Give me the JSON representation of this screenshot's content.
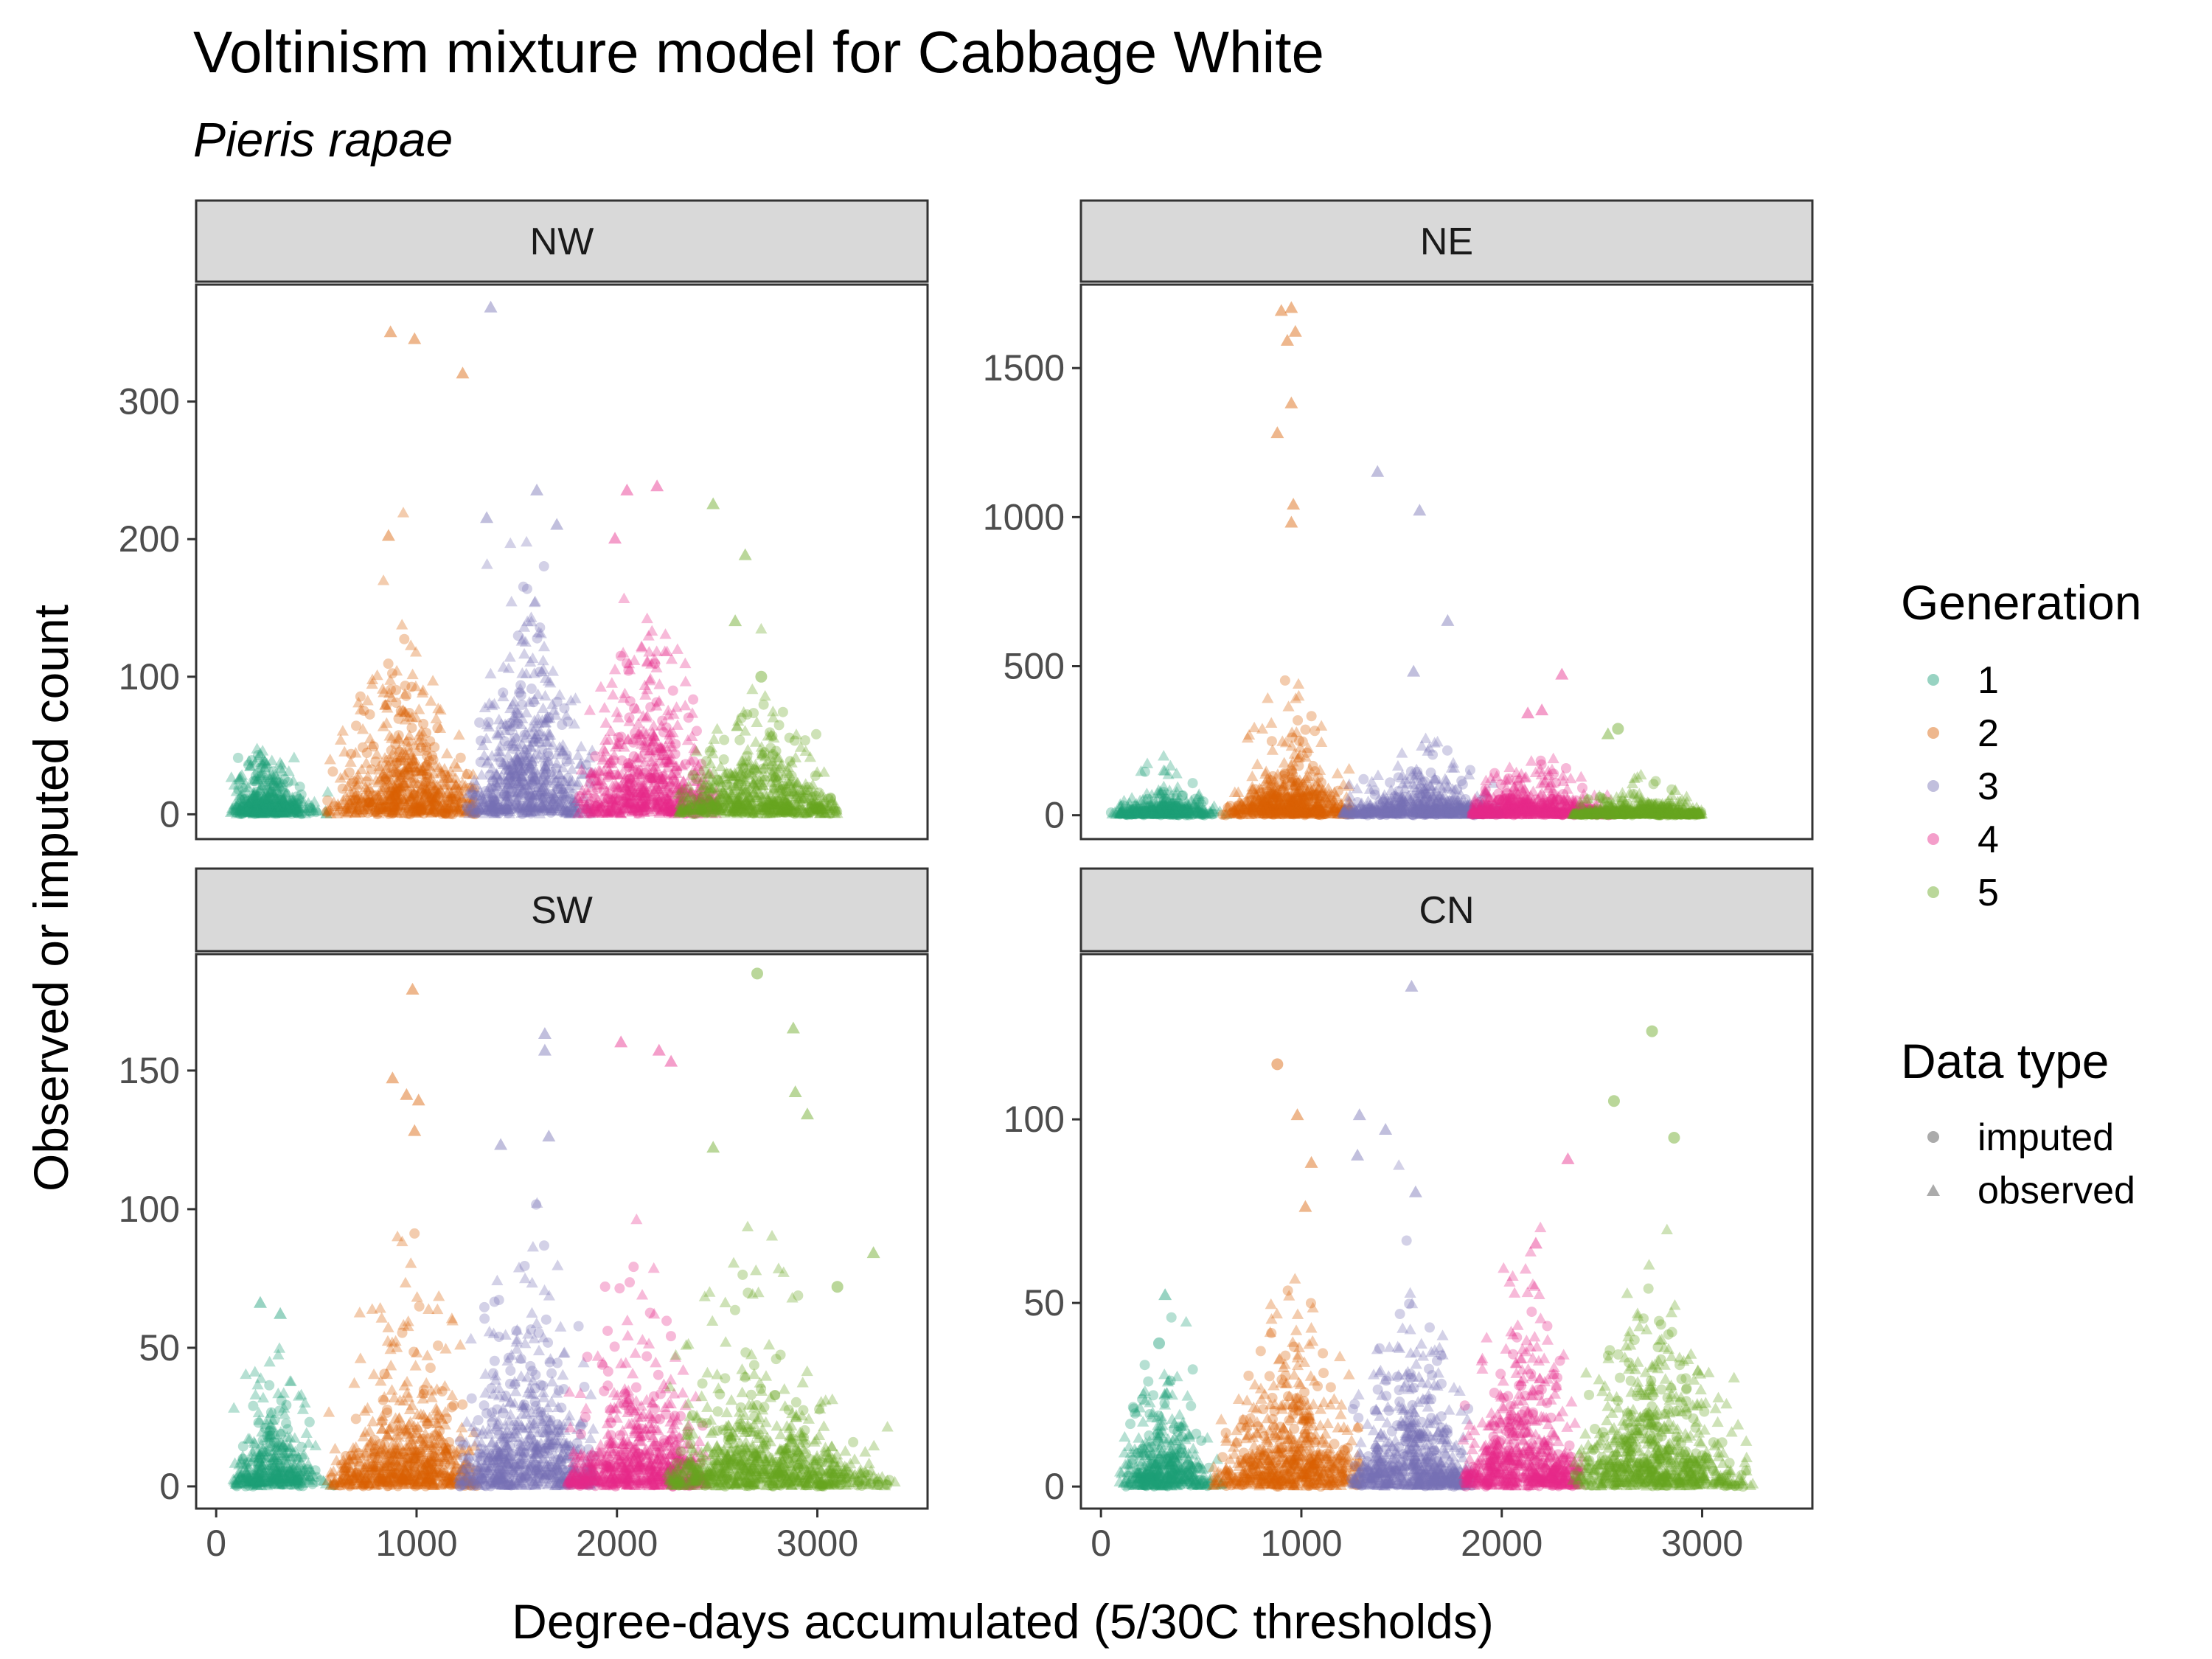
{
  "chart_data": {
    "type": "scatter",
    "title": "Voltinism mixture model for Cabbage White",
    "subtitle": "Pieris rapae",
    "xlabel": "Degree-days accumulated (5/30C thresholds)",
    "ylabel": "Observed or imputed count",
    "x_ticks": [
      0,
      1000,
      2000,
      3000
    ],
    "xlim": [
      -100,
      3550
    ],
    "grid": false,
    "legend_position": "right",
    "legend_generation": {
      "title": "Generation",
      "entries": [
        {
          "label": "1",
          "color": "#1B9E77"
        },
        {
          "label": "2",
          "color": "#D95F02"
        },
        {
          "label": "3",
          "color": "#7570B3"
        },
        {
          "label": "4",
          "color": "#E7298A"
        },
        {
          "label": "5",
          "color": "#66A61E"
        }
      ]
    },
    "legend_datatype": {
      "title": "Data type",
      "entries": [
        {
          "label": "imputed",
          "shape": "circle"
        },
        {
          "label": "observed",
          "shape": "triangle"
        }
      ]
    },
    "panels": [
      {
        "name": "NW",
        "ylim": [
          -18,
          385
        ],
        "y_ticks": [
          0,
          100,
          200,
          300
        ],
        "generations": [
          {
            "gen": "1",
            "center": 250,
            "spread": 110,
            "xmin": 70,
            "xmax": 560,
            "typical": 12,
            "peak": 40,
            "n": 420
          },
          {
            "gen": "2",
            "center": 950,
            "spread": 190,
            "xmin": 550,
            "xmax": 1300,
            "typical": 30,
            "peak": 110,
            "n": 620
          },
          {
            "gen": "3",
            "center": 1550,
            "spread": 170,
            "xmin": 1250,
            "xmax": 1880,
            "typical": 40,
            "peak": 120,
            "n": 620
          },
          {
            "gen": "4",
            "center": 2150,
            "spread": 190,
            "xmin": 1800,
            "xmax": 2500,
            "typical": 35,
            "peak": 130,
            "n": 620
          },
          {
            "gen": "5",
            "center": 2700,
            "spread": 240,
            "xmin": 2300,
            "xmax": 3100,
            "typical": 20,
            "peak": 65,
            "n": 620
          }
        ],
        "highlights": [
          {
            "gen": "2",
            "x": 870,
            "y": 350,
            "shape": "triangle"
          },
          {
            "gen": "2",
            "x": 990,
            "y": 345,
            "shape": "triangle"
          },
          {
            "gen": "2",
            "x": 1230,
            "y": 320,
            "shape": "triangle"
          },
          {
            "gen": "2",
            "x": 860,
            "y": 202,
            "shape": "triangle"
          },
          {
            "gen": "3",
            "x": 1370,
            "y": 368,
            "shape": "triangle"
          },
          {
            "gen": "3",
            "x": 1350,
            "y": 215,
            "shape": "triangle"
          },
          {
            "gen": "3",
            "x": 1600,
            "y": 235,
            "shape": "triangle"
          },
          {
            "gen": "3",
            "x": 1700,
            "y": 210,
            "shape": "triangle"
          },
          {
            "gen": "4",
            "x": 2050,
            "y": 235,
            "shape": "triangle"
          },
          {
            "gen": "4",
            "x": 2200,
            "y": 238,
            "shape": "triangle"
          },
          {
            "gen": "4",
            "x": 1990,
            "y": 200,
            "shape": "triangle"
          },
          {
            "gen": "5",
            "x": 2480,
            "y": 225,
            "shape": "triangle"
          },
          {
            "gen": "5",
            "x": 2640,
            "y": 188,
            "shape": "triangle"
          },
          {
            "gen": "5",
            "x": 2590,
            "y": 140,
            "shape": "triangle"
          },
          {
            "gen": "5",
            "x": 2720,
            "y": 100,
            "shape": "circle"
          }
        ]
      },
      {
        "name": "NE",
        "ylim": [
          -80,
          1780
        ],
        "y_ticks": [
          0,
          500,
          1000,
          1500
        ],
        "generations": [
          {
            "gen": "1",
            "center": 300,
            "spread": 130,
            "xmin": 50,
            "xmax": 640,
            "typical": 25,
            "peak": 180,
            "n": 380
          },
          {
            "gen": "2",
            "center": 950,
            "spread": 170,
            "xmin": 600,
            "xmax": 1250,
            "typical": 60,
            "peak": 500,
            "n": 580
          },
          {
            "gen": "3",
            "center": 1600,
            "spread": 260,
            "xmin": 1200,
            "xmax": 2000,
            "typical": 40,
            "peak": 250,
            "n": 580
          },
          {
            "gen": "4",
            "center": 2150,
            "spread": 250,
            "xmin": 1850,
            "xmax": 2550,
            "typical": 35,
            "peak": 220,
            "n": 560
          },
          {
            "gen": "5",
            "center": 2700,
            "spread": 260,
            "xmin": 2350,
            "xmax": 3000,
            "typical": 15,
            "peak": 120,
            "n": 560
          }
        ],
        "highlights": [
          {
            "gen": "2",
            "x": 900,
            "y": 1690,
            "shape": "triangle"
          },
          {
            "gen": "2",
            "x": 950,
            "y": 1700,
            "shape": "triangle"
          },
          {
            "gen": "2",
            "x": 970,
            "y": 1620,
            "shape": "triangle"
          },
          {
            "gen": "2",
            "x": 930,
            "y": 1590,
            "shape": "triangle"
          },
          {
            "gen": "2",
            "x": 950,
            "y": 1380,
            "shape": "triangle"
          },
          {
            "gen": "2",
            "x": 880,
            "y": 1280,
            "shape": "triangle"
          },
          {
            "gen": "2",
            "x": 960,
            "y": 1040,
            "shape": "triangle"
          },
          {
            "gen": "2",
            "x": 950,
            "y": 980,
            "shape": "triangle"
          },
          {
            "gen": "3",
            "x": 1380,
            "y": 1150,
            "shape": "triangle"
          },
          {
            "gen": "3",
            "x": 1590,
            "y": 1020,
            "shape": "triangle"
          },
          {
            "gen": "3",
            "x": 1730,
            "y": 650,
            "shape": "triangle"
          },
          {
            "gen": "3",
            "x": 1560,
            "y": 480,
            "shape": "triangle"
          },
          {
            "gen": "4",
            "x": 2300,
            "y": 470,
            "shape": "triangle"
          },
          {
            "gen": "4",
            "x": 2130,
            "y": 340,
            "shape": "triangle"
          },
          {
            "gen": "4",
            "x": 2200,
            "y": 350,
            "shape": "triangle"
          },
          {
            "gen": "5",
            "x": 2580,
            "y": 290,
            "shape": "circle"
          },
          {
            "gen": "5",
            "x": 2530,
            "y": 270,
            "shape": "triangle"
          }
        ]
      },
      {
        "name": "SW",
        "ylim": [
          -8,
          192
        ],
        "y_ticks": [
          0,
          50,
          100,
          150
        ],
        "generations": [
          {
            "gen": "1",
            "center": 280,
            "spread": 110,
            "xmin": 80,
            "xmax": 600,
            "typical": 10,
            "peak": 45,
            "n": 380
          },
          {
            "gen": "2",
            "center": 950,
            "spread": 210,
            "xmin": 550,
            "xmax": 1300,
            "typical": 15,
            "peak": 90,
            "n": 640
          },
          {
            "gen": "3",
            "center": 1550,
            "spread": 210,
            "xmin": 1200,
            "xmax": 1900,
            "typical": 20,
            "peak": 95,
            "n": 640
          },
          {
            "gen": "4",
            "center": 2100,
            "spread": 220,
            "xmin": 1750,
            "xmax": 2450,
            "typical": 15,
            "peak": 90,
            "n": 640
          },
          {
            "gen": "5",
            "center": 2700,
            "spread": 320,
            "xmin": 2250,
            "xmax": 3400,
            "typical": 12,
            "peak": 90,
            "n": 800
          }
        ],
        "highlights": [
          {
            "gen": "1",
            "x": 220,
            "y": 66,
            "shape": "triangle"
          },
          {
            "gen": "1",
            "x": 320,
            "y": 62,
            "shape": "triangle"
          },
          {
            "gen": "2",
            "x": 980,
            "y": 179,
            "shape": "triangle"
          },
          {
            "gen": "2",
            "x": 880,
            "y": 147,
            "shape": "triangle"
          },
          {
            "gen": "2",
            "x": 950,
            "y": 141,
            "shape": "triangle"
          },
          {
            "gen": "2",
            "x": 1010,
            "y": 139,
            "shape": "triangle"
          },
          {
            "gen": "2",
            "x": 990,
            "y": 128,
            "shape": "triangle"
          },
          {
            "gen": "3",
            "x": 1640,
            "y": 163,
            "shape": "triangle"
          },
          {
            "gen": "3",
            "x": 1640,
            "y": 157,
            "shape": "triangle"
          },
          {
            "gen": "3",
            "x": 1420,
            "y": 123,
            "shape": "triangle"
          },
          {
            "gen": "3",
            "x": 1660,
            "y": 126,
            "shape": "triangle"
          },
          {
            "gen": "4",
            "x": 2020,
            "y": 160,
            "shape": "triangle"
          },
          {
            "gen": "4",
            "x": 2210,
            "y": 157,
            "shape": "triangle"
          },
          {
            "gen": "4",
            "x": 2270,
            "y": 153,
            "shape": "triangle"
          },
          {
            "gen": "5",
            "x": 2700,
            "y": 185,
            "shape": "circle"
          },
          {
            "gen": "5",
            "x": 2880,
            "y": 165,
            "shape": "triangle"
          },
          {
            "gen": "5",
            "x": 2890,
            "y": 142,
            "shape": "triangle"
          },
          {
            "gen": "5",
            "x": 2950,
            "y": 134,
            "shape": "triangle"
          },
          {
            "gen": "5",
            "x": 2480,
            "y": 122,
            "shape": "triangle"
          },
          {
            "gen": "5",
            "x": 3280,
            "y": 84,
            "shape": "triangle"
          },
          {
            "gen": "5",
            "x": 3100,
            "y": 72,
            "shape": "circle"
          }
        ]
      },
      {
        "name": "CN",
        "ylim": [
          -6,
          145
        ],
        "y_ticks": [
          0,
          50,
          100
        ],
        "generations": [
          {
            "gen": "1",
            "center": 320,
            "spread": 120,
            "xmin": 90,
            "xmax": 620,
            "typical": 8,
            "peak": 28,
            "n": 420
          },
          {
            "gen": "2",
            "center": 950,
            "spread": 200,
            "xmin": 550,
            "xmax": 1300,
            "typical": 12,
            "peak": 50,
            "n": 620
          },
          {
            "gen": "3",
            "center": 1550,
            "spread": 200,
            "xmin": 1250,
            "xmax": 1850,
            "typical": 12,
            "peak": 45,
            "n": 620
          },
          {
            "gen": "4",
            "center": 2100,
            "spread": 200,
            "xmin": 1800,
            "xmax": 2400,
            "typical": 14,
            "peak": 50,
            "n": 620
          },
          {
            "gen": "5",
            "center": 2750,
            "spread": 220,
            "xmin": 2350,
            "xmax": 3280,
            "typical": 12,
            "peak": 40,
            "n": 720
          }
        ],
        "highlights": [
          {
            "gen": "1",
            "x": 320,
            "y": 52,
            "shape": "triangle"
          },
          {
            "gen": "1",
            "x": 290,
            "y": 39,
            "shape": "circle"
          },
          {
            "gen": "2",
            "x": 880,
            "y": 115,
            "shape": "circle"
          },
          {
            "gen": "2",
            "x": 980,
            "y": 101,
            "shape": "triangle"
          },
          {
            "gen": "2",
            "x": 1050,
            "y": 88,
            "shape": "triangle"
          },
          {
            "gen": "2",
            "x": 1020,
            "y": 76,
            "shape": "triangle"
          },
          {
            "gen": "3",
            "x": 1550,
            "y": 136,
            "shape": "triangle"
          },
          {
            "gen": "3",
            "x": 1290,
            "y": 101,
            "shape": "triangle"
          },
          {
            "gen": "3",
            "x": 1420,
            "y": 97,
            "shape": "triangle"
          },
          {
            "gen": "3",
            "x": 1280,
            "y": 90,
            "shape": "triangle"
          },
          {
            "gen": "3",
            "x": 1570,
            "y": 80,
            "shape": "triangle"
          },
          {
            "gen": "4",
            "x": 2330,
            "y": 89,
            "shape": "triangle"
          },
          {
            "gen": "4",
            "x": 2170,
            "y": 66,
            "shape": "triangle"
          },
          {
            "gen": "5",
            "x": 2750,
            "y": 124,
            "shape": "circle"
          },
          {
            "gen": "5",
            "x": 2560,
            "y": 105,
            "shape": "circle"
          },
          {
            "gen": "5",
            "x": 2860,
            "y": 95,
            "shape": "circle"
          }
        ]
      }
    ]
  }
}
